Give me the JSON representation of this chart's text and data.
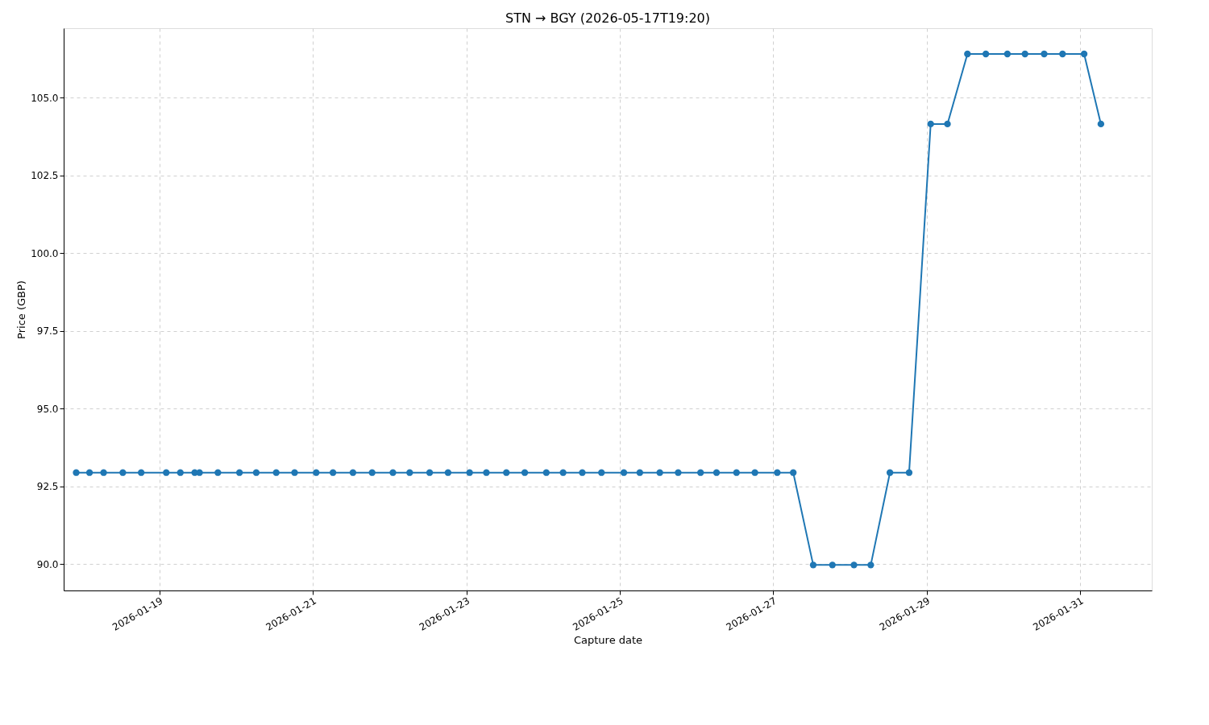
{
  "chart_data": {
    "type": "line",
    "title": "STN → BGY (2026-05-17T19:20)",
    "xlabel": "Capture date",
    "ylabel": "Price (GBP)",
    "x": [
      "2026-01-17T21:55",
      "2026-01-18T02:05",
      "2026-01-18T06:30",
      "2026-01-18T12:30",
      "2026-01-18T18:15",
      "2026-01-19T02:05",
      "2026-01-19T06:30",
      "2026-01-19T11:00",
      "2026-01-19T12:30",
      "2026-01-19T18:15",
      "2026-01-20T01:00",
      "2026-01-20T06:15",
      "2026-01-20T12:30",
      "2026-01-20T18:15",
      "2026-01-21T01:00",
      "2026-01-21T06:15",
      "2026-01-21T12:30",
      "2026-01-21T18:30",
      "2026-01-22T01:00",
      "2026-01-22T06:15",
      "2026-01-22T12:30",
      "2026-01-22T18:15",
      "2026-01-23T01:00",
      "2026-01-23T06:15",
      "2026-01-23T12:30",
      "2026-01-23T18:15",
      "2026-01-24T01:00",
      "2026-01-24T06:15",
      "2026-01-24T12:15",
      "2026-01-24T18:15",
      "2026-01-25T01:15",
      "2026-01-25T06:15",
      "2026-01-25T12:30",
      "2026-01-25T18:15",
      "2026-01-26T01:15",
      "2026-01-26T06:15",
      "2026-01-26T12:30",
      "2026-01-26T18:15",
      "2026-01-27T01:15",
      "2026-01-27T06:15",
      "2026-01-27T12:30",
      "2026-01-27T18:30",
      "2026-01-28T01:15",
      "2026-01-28T06:30",
      "2026-01-28T12:30",
      "2026-01-28T18:30",
      "2026-01-29T01:15",
      "2026-01-29T06:30",
      "2026-01-29T12:45",
      "2026-01-29T18:30",
      "2026-01-30T01:15",
      "2026-01-30T06:45",
      "2026-01-30T12:45",
      "2026-01-30T18:30",
      "2026-01-31T01:15",
      "2026-01-31T06:30"
    ],
    "series": [
      {
        "color": "#1f77b4",
        "values": [
          92.94,
          92.94,
          92.94,
          92.94,
          92.94,
          92.94,
          92.94,
          92.94,
          92.94,
          92.94,
          92.94,
          92.94,
          92.94,
          92.94,
          92.94,
          92.94,
          92.94,
          92.94,
          92.94,
          92.94,
          92.94,
          92.94,
          92.94,
          92.94,
          92.94,
          92.94,
          92.94,
          92.94,
          92.94,
          92.94,
          92.94,
          92.94,
          92.94,
          92.94,
          92.94,
          92.94,
          92.94,
          92.94,
          92.94,
          92.94,
          89.97,
          89.97,
          89.97,
          89.97,
          92.94,
          92.94,
          104.15,
          104.15,
          106.4,
          106.4,
          106.4,
          106.4,
          106.4,
          106.4,
          106.4,
          104.15
        ]
      }
    ],
    "xlim": [
      "2026-01-17T18:00",
      "2026-01-31T22:25"
    ],
    "xticks": [
      "2026-01-19",
      "2026-01-21",
      "2026-01-23",
      "2026-01-25",
      "2026-01-27",
      "2026-01-29",
      "2026-01-31"
    ],
    "ylim": [
      89.15,
      107.23
    ],
    "yticks": [
      {
        "value": 90,
        "label": "90.0"
      },
      {
        "value": 92.5,
        "label": "92.5"
      },
      {
        "value": 95,
        "label": "95.0"
      },
      {
        "value": 97.5,
        "label": "97.5"
      },
      {
        "value": 100,
        "label": "100.0"
      },
      {
        "value": 102.5,
        "label": "102.5"
      },
      {
        "value": 105,
        "label": "105.0"
      }
    ],
    "grid": true,
    "marker": "circle",
    "line_style": "solid",
    "legend": false
  }
}
